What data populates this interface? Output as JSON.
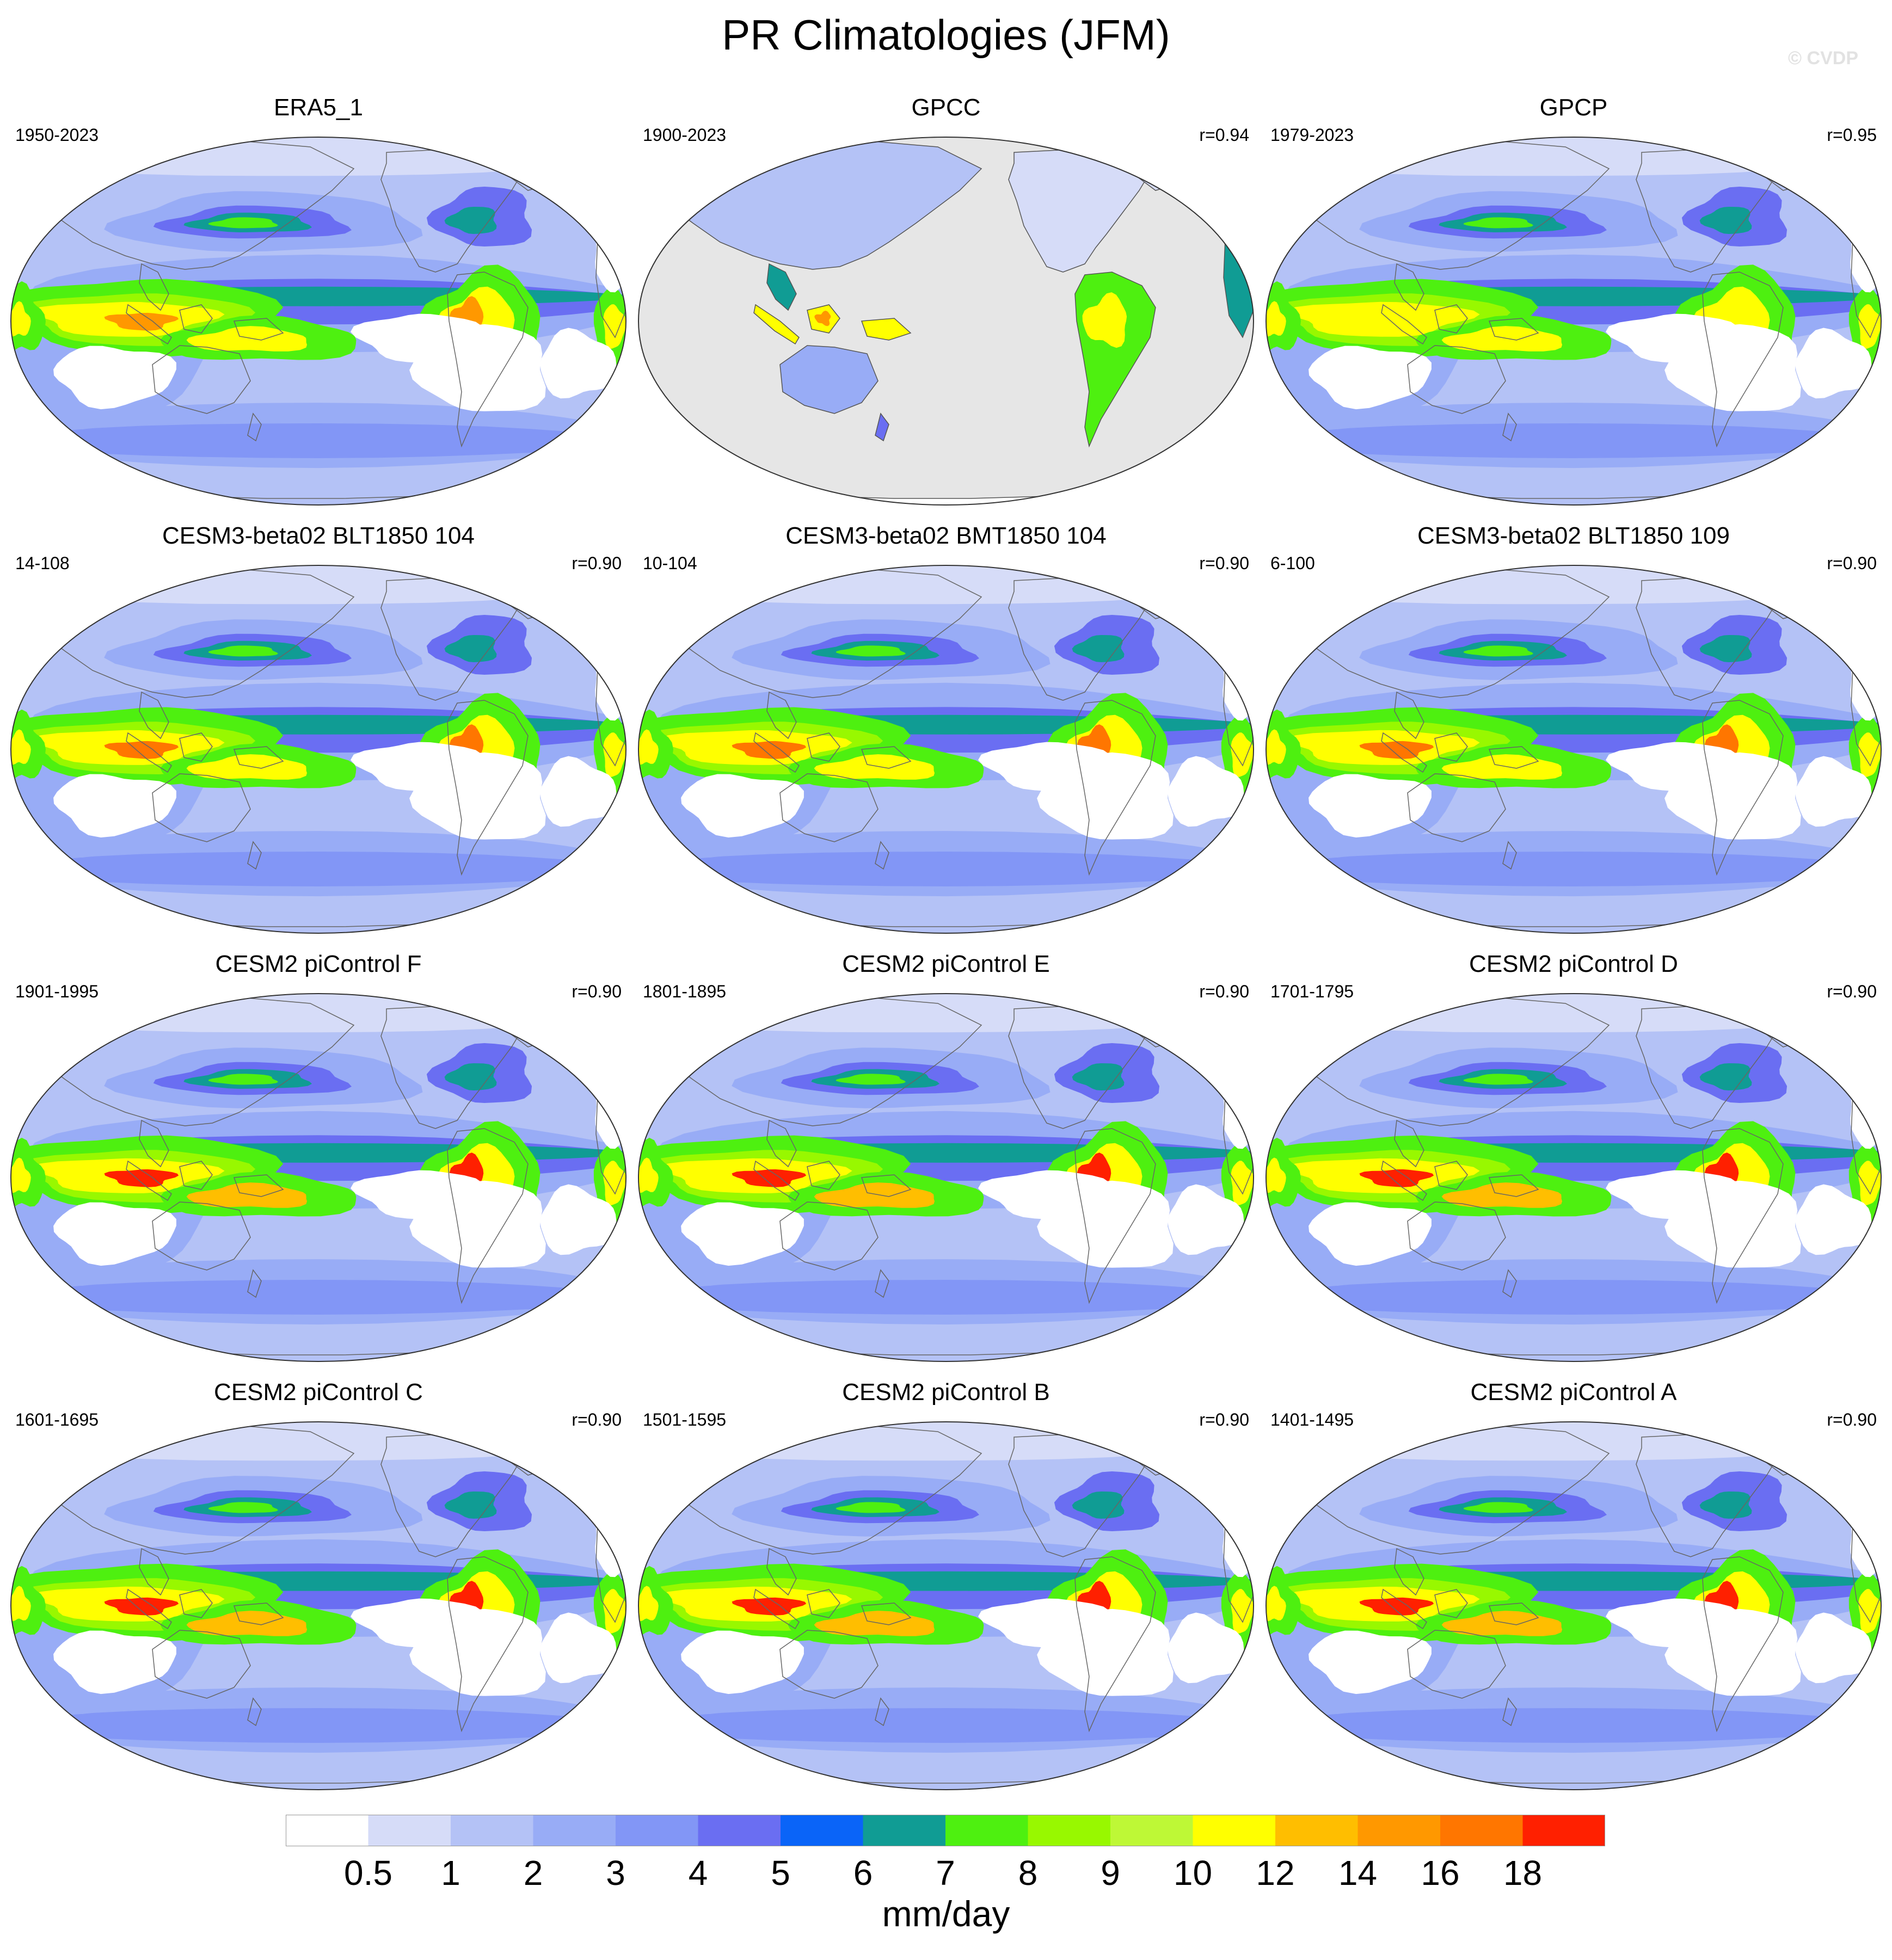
{
  "figure": {
    "title": "PR Climatologies (JFM)",
    "watermark": "© CVDP"
  },
  "panels": [
    {
      "title": "ERA5_1",
      "years": "1950-2023",
      "r": "",
      "source": "reanalysis",
      "land_only": false
    },
    {
      "title": "GPCC",
      "years": "1900-2023",
      "r": "r=0.94",
      "source": "gauge",
      "land_only": true
    },
    {
      "title": "GPCP",
      "years": "1979-2023",
      "r": "r=0.95",
      "source": "satellite",
      "land_only": false
    },
    {
      "title": "CESM3-beta02 BLT1850 104",
      "years": "14-108",
      "r": "r=0.90",
      "source": "cesm3",
      "land_only": false
    },
    {
      "title": "CESM3-beta02 BMT1850 104",
      "years": "10-104",
      "r": "r=0.90",
      "source": "cesm3",
      "land_only": false
    },
    {
      "title": "CESM3-beta02 BLT1850 109",
      "years": "6-100",
      "r": "r=0.90",
      "source": "cesm3",
      "land_only": false
    },
    {
      "title": "CESM2 piControl F",
      "years": "1901-1995",
      "r": "r=0.90",
      "source": "cesm2",
      "land_only": false
    },
    {
      "title": "CESM2 piControl E",
      "years": "1801-1895",
      "r": "r=0.90",
      "source": "cesm2",
      "land_only": false
    },
    {
      "title": "CESM2 piControl D",
      "years": "1701-1795",
      "r": "r=0.90",
      "source": "cesm2",
      "land_only": false
    },
    {
      "title": "CESM2 piControl C",
      "years": "1601-1695",
      "r": "r=0.90",
      "source": "cesm2",
      "land_only": false
    },
    {
      "title": "CESM2 piControl B",
      "years": "1501-1595",
      "r": "r=0.90",
      "source": "cesm2",
      "land_only": false
    },
    {
      "title": "CESM2 piControl A",
      "years": "1401-1495",
      "r": "r=0.90",
      "source": "cesm2",
      "land_only": false
    }
  ],
  "colorbar": {
    "units": "mm/day",
    "levels": [
      "0.5",
      "1",
      "2",
      "3",
      "4",
      "5",
      "6",
      "7",
      "8",
      "9",
      "10",
      "12",
      "14",
      "16",
      "18"
    ],
    "colors": [
      "#ffffff",
      "#d6dcf8",
      "#b4c2f6",
      "#98acf6",
      "#8296f6",
      "#6a6ef2",
      "#0a64f8",
      "#109c94",
      "#4ef010",
      "#98f800",
      "#bef836",
      "#ffff00",
      "#ffbe00",
      "#ff9800",
      "#ff7600",
      "#ff2000"
    ],
    "missing_color": "#e6e6e6"
  }
}
